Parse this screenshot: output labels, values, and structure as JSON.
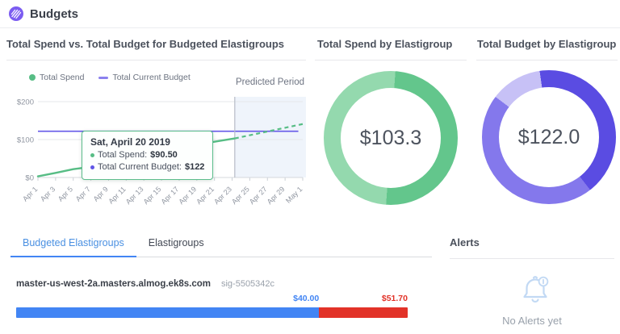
{
  "header": {
    "title": "Budgets",
    "logo_color": "#7b5cf1"
  },
  "spend_panel": {
    "title": "Total Spend vs. Total Budget for Budgeted Elastigroups",
    "predicted_label": "Predicted Period",
    "legend": [
      {
        "label": "Total Spend",
        "color": "#57bd85",
        "marker": "dot"
      },
      {
        "label": "Total Current Budget",
        "color": "#8b80ee",
        "marker": "dash"
      }
    ],
    "tooltip": {
      "title": "Sat, April 20 2019",
      "items": [
        {
          "label": "Total Spend:",
          "value": "$90.50",
          "bullet_color": "#57bd85"
        },
        {
          "label": "Total Current Budget:",
          "value": "$122",
          "bullet_color": "#6055e6"
        }
      ]
    }
  },
  "chart_data": [
    {
      "type": "line",
      "title": "Total Spend vs. Total Budget for Budgeted Elastigroups",
      "xlabel": "",
      "ylabel": "",
      "ylim": [
        0,
        200
      ],
      "y_ticks": [
        0,
        100,
        200
      ],
      "y_tick_prefix": "$",
      "x_tick_labels": [
        "Apr 1",
        "Apr 3",
        "Apr 5",
        "Apr 7",
        "Apr 9",
        "Apr 11",
        "Apr 13",
        "Apr 15",
        "Apr 17",
        "Apr 19",
        "Apr 21",
        "Apr 23",
        "Apr 25",
        "Apr 27",
        "Apr 29",
        "May 1"
      ],
      "x_tick_day_step": 2,
      "series": [
        {
          "name": "Total Spend",
          "color": "#57bd85",
          "solid_points": [
            [
              0,
              3
            ],
            [
              2,
              12
            ],
            [
              4,
              22
            ],
            [
              6,
              28
            ],
            [
              8,
              37
            ],
            [
              10,
              46
            ],
            [
              12,
              56
            ],
            [
              14,
              66
            ],
            [
              16,
              76
            ],
            [
              18,
              86
            ],
            [
              19,
              90.5
            ],
            [
              22.3,
              103
            ]
          ],
          "dashed_points": [
            [
              22.3,
              103
            ],
            [
              30,
              141
            ]
          ]
        },
        {
          "name": "Total Current Budget",
          "color": "#6458e8",
          "constant_value": 122,
          "x_start": 0,
          "x_end": 29.5
        }
      ],
      "predicted_region": {
        "label": "Predicted Period",
        "start_day": 22.3,
        "end_day": 30,
        "fill": "#ebf1fa"
      },
      "marker": {
        "series": "Total Spend",
        "day": 19,
        "value": 90.5
      },
      "tooltip": {
        "date": "Sat, April 20 2019",
        "total_spend": "$90.50",
        "total_current_budget": "$122"
      }
    },
    {
      "type": "donut",
      "title": "Total Spend by Elastigroup",
      "center_label": "$103.3",
      "rotate_deg": 4,
      "segments": [
        {
          "color": "#63c68c",
          "deg": 180
        },
        {
          "color": "#94d9ae",
          "deg": 180
        }
      ]
    },
    {
      "type": "donut",
      "title": "Total Budget by Elastigroup",
      "center_label": "$122.0",
      "rotate_deg": -8,
      "segments": [
        {
          "color": "#5a4ce2",
          "deg": 150
        },
        {
          "color": "#8478ec",
          "deg": 165
        },
        {
          "color": "#c7c1f6",
          "deg": 45
        }
      ]
    },
    {
      "type": "bar",
      "name": "master-us-west-2a.masters.almog.ek8s.com",
      "total": 51.7,
      "segments": [
        {
          "label": "$40.00",
          "value": 40.0,
          "color": "#4285f4"
        },
        {
          "label": "$51.70",
          "value": 11.7,
          "color": "#e23228"
        }
      ]
    }
  ],
  "spend_donut_panel": {
    "title": "Total Spend by Elastigroup",
    "value": "$103.3"
  },
  "budget_donut_panel": {
    "title": "Total Budget by Elastigroup",
    "value": "$122.0"
  },
  "tabs": [
    {
      "label": "Budgeted Elastigroups",
      "active": true
    },
    {
      "label": "Elastigroups",
      "active": false
    }
  ],
  "elastigroup_row": {
    "name": "master-us-west-2a.masters.almog.ek8s.com",
    "sig": "sig-5505342c",
    "spend_label": "$40.00",
    "budget_label": "$51.70",
    "spend_value": 40.0,
    "total_value": 51.7,
    "spend_color": "#4285f4",
    "over_color": "#e23228"
  },
  "alerts": {
    "title": "Alerts",
    "empty_text": "No Alerts yet"
  }
}
